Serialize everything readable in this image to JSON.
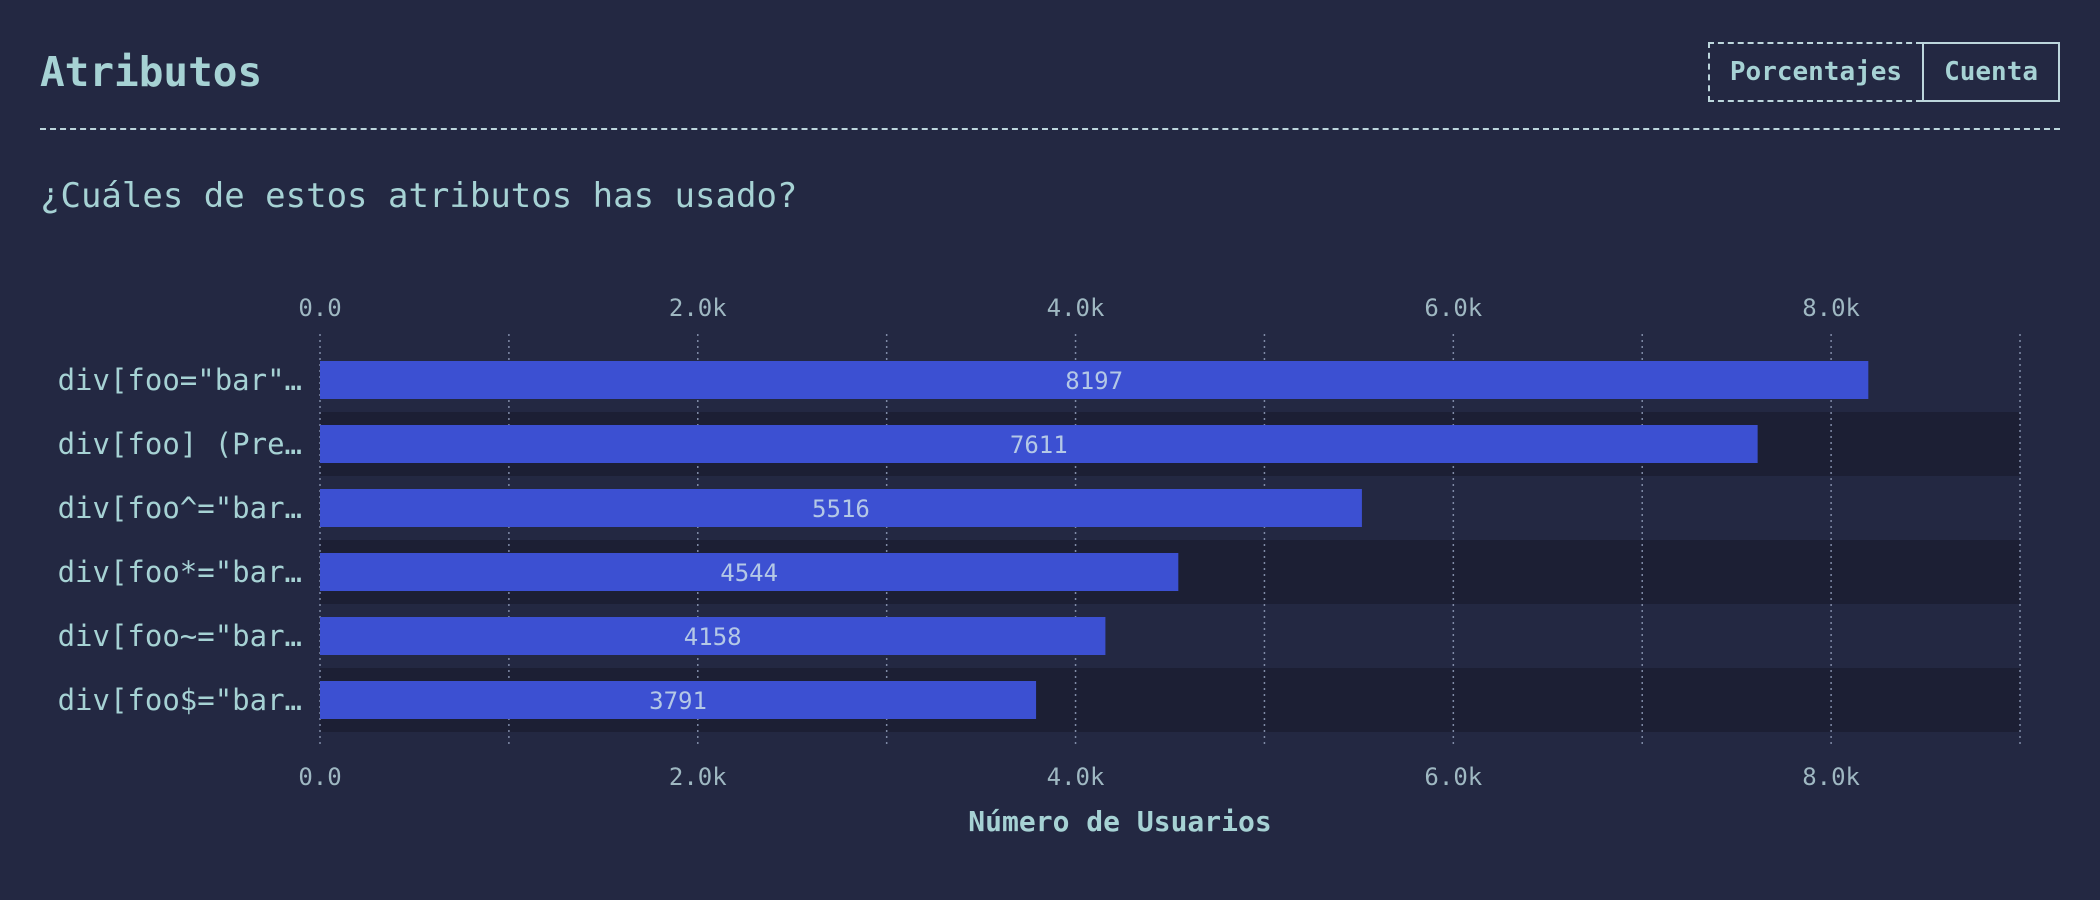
{
  "header": {
    "title": "Atributos",
    "toggle": {
      "percent_label": "Porcentajes",
      "count_label": "Cuenta",
      "selected": "Cuenta"
    }
  },
  "question": "¿Cuáles de estos atributos has usado?",
  "colors": {
    "bar": "#3c50d2",
    "row_alt": "#1c1f34",
    "background": "#232842",
    "grid": "#7f8aa6"
  },
  "chart_data": {
    "type": "bar",
    "orientation": "horizontal",
    "categories": [
      "div[foo=\"bar\"…",
      "div[foo] (Pre…",
      "div[foo^=\"bar…",
      "div[foo*=\"bar…",
      "div[foo~=\"bar…",
      "div[foo$=\"bar…"
    ],
    "values": [
      8197,
      7611,
      5516,
      4544,
      4158,
      3791
    ],
    "xlabel": "Número de Usuarios",
    "xlim": [
      0,
      9000
    ],
    "major_ticks": [
      0,
      2000,
      4000,
      6000,
      8000
    ],
    "tick_labels": [
      "0.0",
      "2.0k",
      "4.0k",
      "6.0k",
      "8.0k"
    ],
    "minor_gridlines": [
      1000,
      3000,
      5000,
      7000,
      9000
    ],
    "grid": true,
    "data_labels": true
  }
}
